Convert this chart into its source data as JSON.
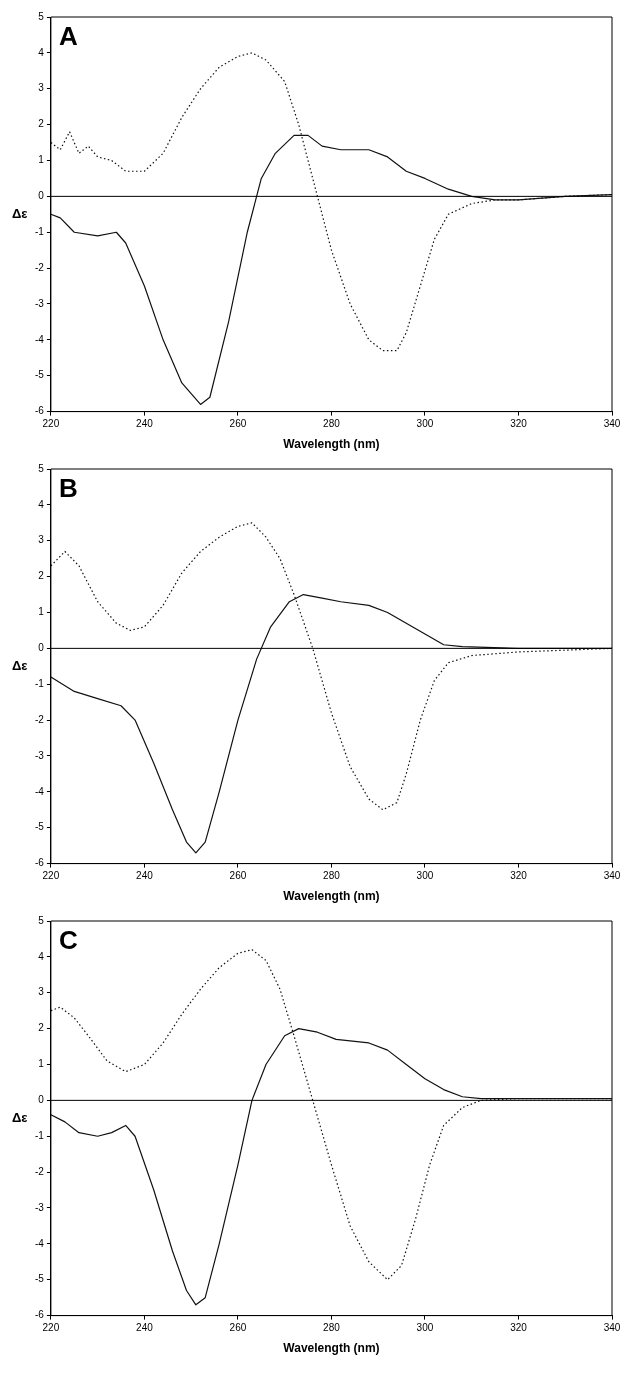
{
  "chart_data": [
    {
      "type": "line",
      "annotations": [
        "A"
      ],
      "xlabel": "Wavelength (nm)",
      "ylabel": "Δε",
      "xlim": [
        220,
        340
      ],
      "xticks": [
        220,
        240,
        260,
        280,
        300,
        320,
        340
      ],
      "ylim": [
        -6,
        5
      ],
      "yticks": [
        -6,
        -5,
        -4,
        -3,
        -2,
        -1,
        0,
        1,
        2,
        3,
        4,
        5
      ],
      "grid": false,
      "legend": false,
      "marker": "none",
      "ref_lines": [
        {
          "axis": "y",
          "value": 0,
          "color": "#000000"
        }
      ],
      "series": [
        {
          "color": "#111111",
          "line_style": "solid",
          "x": [
            220,
            222,
            225,
            230,
            234,
            236,
            240,
            244,
            248,
            252,
            254,
            258,
            262,
            265,
            268,
            272,
            275,
            278,
            282,
            288,
            292,
            296,
            300,
            305,
            310,
            315,
            320,
            330,
            340
          ],
          "values": [
            -0.5,
            -0.6,
            -1.0,
            -1.1,
            -1.0,
            -1.3,
            -2.5,
            -4.0,
            -5.2,
            -5.8,
            -5.6,
            -3.5,
            -1.0,
            0.5,
            1.2,
            1.7,
            1.7,
            1.4,
            1.3,
            1.3,
            1.1,
            0.7,
            0.5,
            0.2,
            0.0,
            -0.1,
            -0.1,
            0,
            0.05
          ]
        },
        {
          "color": "#111111",
          "line_style": "dotted",
          "x": [
            220,
            222,
            224,
            226,
            228,
            230,
            233,
            236,
            240,
            244,
            248,
            252,
            256,
            260,
            263,
            266,
            270,
            273,
            276,
            280,
            284,
            288,
            291,
            294,
            296,
            299,
            302,
            305,
            310,
            315,
            320,
            330,
            340
          ],
          "values": [
            1.5,
            1.3,
            1.8,
            1.2,
            1.4,
            1.1,
            1.0,
            0.7,
            0.7,
            1.2,
            2.2,
            3.0,
            3.6,
            3.9,
            4.0,
            3.8,
            3.2,
            2.0,
            0.5,
            -1.5,
            -3.0,
            -4.0,
            -4.3,
            -4.3,
            -3.8,
            -2.5,
            -1.2,
            -0.5,
            -0.2,
            -0.1,
            -0.1,
            0,
            0.05
          ]
        }
      ]
    },
    {
      "type": "line",
      "annotations": [
        "B"
      ],
      "xlabel": "Wavelength (nm)",
      "ylabel": "Δε",
      "xlim": [
        220,
        340
      ],
      "xticks": [
        220,
        240,
        260,
        280,
        300,
        320,
        340
      ],
      "ylim": [
        -6,
        5
      ],
      "yticks": [
        -6,
        -5,
        -4,
        -3,
        -2,
        -1,
        0,
        1,
        2,
        3,
        4,
        5
      ],
      "grid": false,
      "legend": false,
      "marker": "none",
      "ref_lines": [
        {
          "axis": "y",
          "value": 0,
          "color": "#000000"
        }
      ],
      "series": [
        {
          "color": "#111111",
          "line_style": "solid",
          "x": [
            220,
            225,
            230,
            235,
            238,
            242,
            246,
            249,
            251,
            253,
            256,
            260,
            264,
            267,
            271,
            274,
            278,
            282,
            288,
            292,
            296,
            300,
            304,
            308,
            320,
            340
          ],
          "values": [
            -0.8,
            -1.2,
            -1.4,
            -1.6,
            -2.0,
            -3.2,
            -4.5,
            -5.4,
            -5.7,
            -5.4,
            -4.0,
            -2.0,
            -0.3,
            0.6,
            1.3,
            1.5,
            1.4,
            1.3,
            1.2,
            1.0,
            0.7,
            0.4,
            0.1,
            0.05,
            0,
            0
          ]
        },
        {
          "color": "#111111",
          "line_style": "dotted",
          "x": [
            220,
            223,
            226,
            230,
            234,
            237,
            240,
            244,
            248,
            252,
            256,
            260,
            263,
            266,
            269,
            272,
            276,
            280,
            284,
            288,
            291,
            294,
            296,
            299,
            302,
            305,
            310,
            320,
            340
          ],
          "values": [
            2.3,
            2.7,
            2.3,
            1.3,
            0.7,
            0.5,
            0.6,
            1.2,
            2.1,
            2.7,
            3.1,
            3.4,
            3.5,
            3.1,
            2.5,
            1.5,
            0.0,
            -1.8,
            -3.3,
            -4.2,
            -4.5,
            -4.3,
            -3.5,
            -2.0,
            -0.9,
            -0.4,
            -0.2,
            -0.1,
            0
          ]
        }
      ]
    },
    {
      "type": "line",
      "annotations": [
        "C"
      ],
      "xlabel": "Wavelength (nm)",
      "ylabel": "Δε",
      "xlim": [
        220,
        340
      ],
      "xticks": [
        220,
        240,
        260,
        280,
        300,
        320,
        340
      ],
      "ylim": [
        -6,
        5
      ],
      "yticks": [
        -6,
        -5,
        -4,
        -3,
        -2,
        -1,
        0,
        1,
        2,
        3,
        4,
        5
      ],
      "grid": false,
      "legend": false,
      "marker": "none",
      "ref_lines": [
        {
          "axis": "y",
          "value": 0,
          "color": "#000000"
        }
      ],
      "series": [
        {
          "color": "#111111",
          "line_style": "solid",
          "x": [
            220,
            223,
            226,
            230,
            233,
            236,
            238,
            242,
            246,
            249,
            251,
            253,
            256,
            260,
            263,
            266,
            270,
            273,
            277,
            281,
            288,
            292,
            296,
            300,
            304,
            308,
            312,
            320,
            340
          ],
          "values": [
            -0.4,
            -0.6,
            -0.9,
            -1.0,
            -0.9,
            -0.7,
            -1.0,
            -2.5,
            -4.2,
            -5.3,
            -5.7,
            -5.5,
            -4.0,
            -1.8,
            0.0,
            1.0,
            1.8,
            2.0,
            1.9,
            1.7,
            1.6,
            1.4,
            1.0,
            0.6,
            0.3,
            0.1,
            0.05,
            0.05,
            0.05
          ]
        },
        {
          "color": "#111111",
          "line_style": "dotted",
          "x": [
            220,
            222,
            225,
            228,
            232,
            236,
            240,
            244,
            248,
            252,
            256,
            260,
            263,
            266,
            269,
            272,
            276,
            280,
            284,
            288,
            292,
            295,
            298,
            301,
            304,
            308,
            312,
            320,
            340
          ],
          "values": [
            2.5,
            2.6,
            2.3,
            1.8,
            1.1,
            0.8,
            1.0,
            1.6,
            2.4,
            3.1,
            3.7,
            4.1,
            4.2,
            3.9,
            3.1,
            1.8,
            0.0,
            -1.8,
            -3.5,
            -4.5,
            -5.0,
            -4.6,
            -3.3,
            -1.8,
            -0.7,
            -0.2,
            0.0,
            0.05,
            0.05
          ]
        }
      ]
    }
  ]
}
